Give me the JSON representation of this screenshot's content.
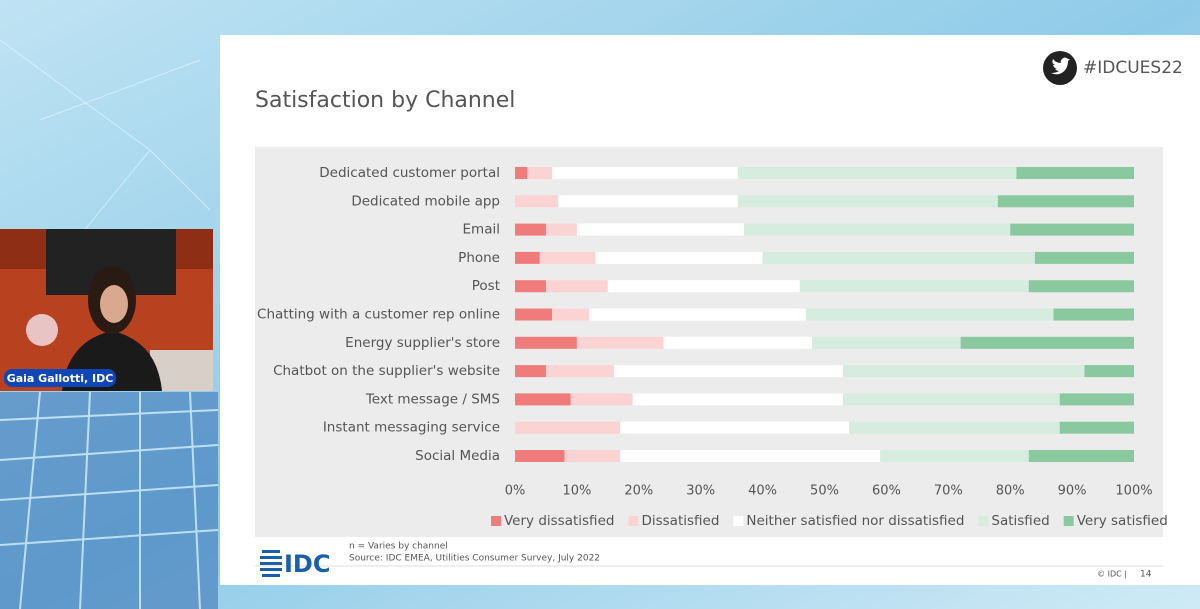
{
  "chart_data": {
    "type": "stacked-bar-horizontal",
    "title": "Satisfaction by Channel",
    "categories": [
      "Dedicated customer portal",
      "Dedicated mobile app",
      "Email",
      "Phone",
      "Post",
      "Chatting with a customer rep online",
      "Energy supplier's store",
      "Chatbot on the supplier's website",
      "Text message / SMS",
      "Instant messaging service",
      "Social Media"
    ],
    "series": [
      {
        "name": "Very dissatisfied",
        "color": "#f07b7b",
        "values": [
          2,
          0,
          5,
          4,
          5,
          6,
          10,
          5,
          9,
          0,
          8
        ]
      },
      {
        "name": "Dissatisfied",
        "color": "#fbd3d3",
        "values": [
          4,
          7,
          5,
          9,
          10,
          6,
          14,
          11,
          10,
          17,
          9
        ]
      },
      {
        "name": "Neither satisfied nor dissatisfied",
        "color": "#ffffff",
        "values": [
          30,
          29,
          27,
          27,
          31,
          35,
          24,
          37,
          34,
          37,
          42
        ]
      },
      {
        "name": "Satisfied",
        "color": "#d6ecdf",
        "values": [
          45,
          42,
          43,
          44,
          37,
          40,
          24,
          39,
          35,
          34,
          24
        ]
      },
      {
        "name": "Very satisfied",
        "color": "#8ac8a0",
        "values": [
          19,
          22,
          20,
          16,
          17,
          13,
          28,
          8,
          12,
          12,
          17
        ]
      }
    ],
    "xlim": [
      0,
      100
    ],
    "xticks": [
      {
        "value": 0,
        "label": "0%"
      },
      {
        "value": 10,
        "label": "10%"
      },
      {
        "value": 20,
        "label": "20%"
      },
      {
        "value": 30,
        "label": "30%"
      },
      {
        "value": 40,
        "label": "40%"
      },
      {
        "value": 50,
        "label": "50%"
      },
      {
        "value": 60,
        "label": "60%"
      },
      {
        "value": 70,
        "label": "70%"
      },
      {
        "value": 80,
        "label": "80%"
      },
      {
        "value": 90,
        "label": "90%"
      },
      {
        "value": 100,
        "label": "100%"
      }
    ],
    "legend": "bottom"
  },
  "hashtag": "#IDCUES22",
  "speaker": "Gaia Gallotti, IDC",
  "note": "n = Varies by channel",
  "source": "Source: IDC EMEA, Utilities Consumer Survey, July 2022",
  "logo": "IDC",
  "copyright": "© IDC |",
  "page_number": "14"
}
